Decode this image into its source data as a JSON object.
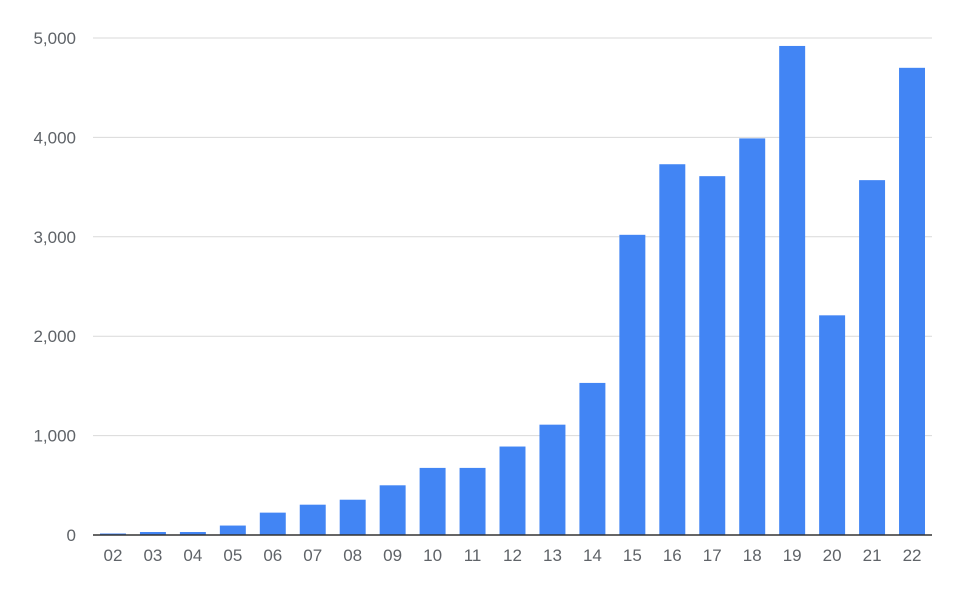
{
  "colors": {
    "bar": "#4285f4",
    "grid": "#d9d9d9",
    "axis": "#333333",
    "tick_text": "#5f6368",
    "background": "#ffffff"
  },
  "chart_data": {
    "type": "bar",
    "title": "",
    "xlabel": "",
    "ylabel": "",
    "categories": [
      "02",
      "03",
      "04",
      "05",
      "06",
      "07",
      "08",
      "09",
      "10",
      "11",
      "12",
      "13",
      "14",
      "15",
      "16",
      "17",
      "18",
      "19",
      "20",
      "21",
      "22"
    ],
    "values": [
      15,
      30,
      30,
      95,
      225,
      305,
      355,
      500,
      675,
      675,
      890,
      1110,
      1530,
      3020,
      3730,
      3610,
      3990,
      4920,
      2210,
      3570,
      4700
    ],
    "ylim": [
      0,
      5000
    ],
    "yticks": [
      0,
      1000,
      2000,
      3000,
      4000,
      5000
    ],
    "ytick_labels": [
      "0",
      "1,000",
      "2,000",
      "3,000",
      "4,000",
      "5,000"
    ],
    "grid": true,
    "legend": "none"
  }
}
